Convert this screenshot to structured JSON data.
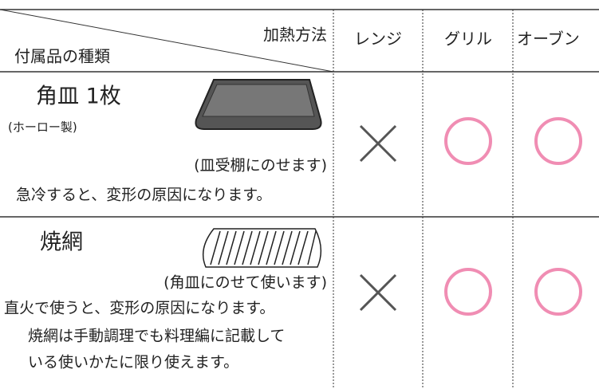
{
  "table": {
    "header": {
      "heating_method": "加熱方法",
      "accessory_type": "付属品の種類",
      "columns": [
        "レンジ",
        "グリル",
        "オーブン"
      ]
    },
    "rows": [
      {
        "name": "角皿 1枚",
        "material": "(ホーロー製)",
        "placement": "(皿受棚にのせます)",
        "notes": [
          "急冷すると、変形の原因になります。"
        ]
      },
      {
        "name": "焼網",
        "placement": "(角皿にのせて使います)",
        "notes": [
          "直火で使うと、変形の原因になります。",
          "焼網は手動調理でも料理編に記載して",
          "いる使いかたに限り使えます。"
        ]
      }
    ]
  }
}
